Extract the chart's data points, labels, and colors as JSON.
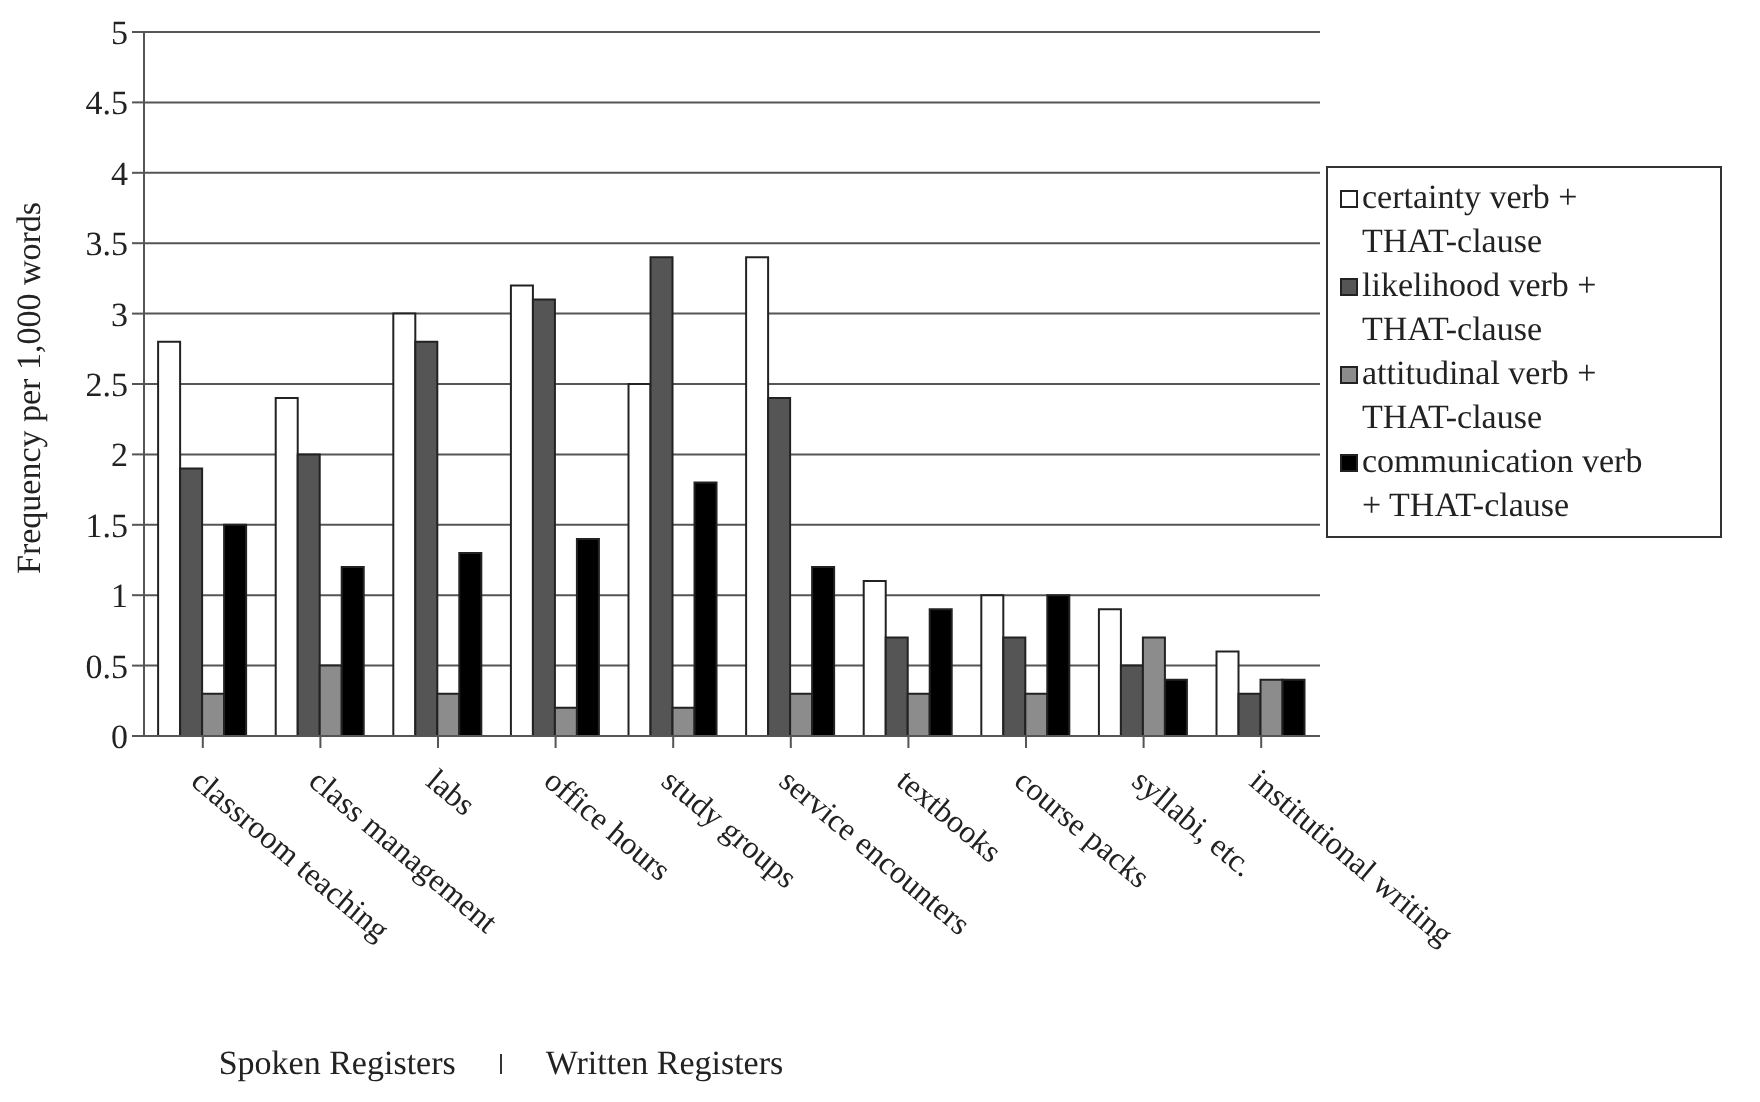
{
  "chart_data": {
    "type": "bar",
    "ylabel": "Frequency per 1,000 words",
    "xlabel": "Spoken Registers",
    "annotations": [
      "Written Registers"
    ],
    "categories": [
      "classroom teaching",
      "class management",
      "labs",
      "office hours",
      "study groups",
      "service encounters",
      "textbooks",
      "course packs",
      "syllabi, etc.",
      "institutional writing"
    ],
    "series": [
      {
        "name": "certainty verb + THAT-clause",
        "color": "#ffffff",
        "values": [
          2.8,
          2.4,
          3.0,
          3.2,
          2.5,
          3.4,
          1.1,
          1.0,
          0.9,
          0.6
        ]
      },
      {
        "name": "likelihood verb + THAT-clause",
        "color": "#555555",
        "values": [
          1.9,
          2.0,
          2.8,
          3.1,
          3.4,
          2.4,
          0.7,
          0.7,
          0.5,
          0.3
        ]
      },
      {
        "name": "attitudinal verb + THAT-clause",
        "color": "#8c8c8c",
        "values": [
          0.3,
          0.5,
          0.3,
          0.2,
          0.2,
          0.3,
          0.3,
          0.3,
          0.7,
          0.4
        ]
      },
      {
        "name": "communication verb + THAT-clause",
        "color": "#000000",
        "values": [
          1.5,
          1.2,
          1.3,
          1.4,
          1.8,
          1.2,
          0.9,
          1.0,
          0.4,
          0.4
        ]
      }
    ],
    "ylim": [
      0,
      5
    ],
    "yticks": [
      0,
      0.5,
      1,
      1.5,
      2,
      2.5,
      3,
      3.5,
      4,
      4.5,
      5
    ],
    "grid": "y",
    "legend": "right"
  }
}
